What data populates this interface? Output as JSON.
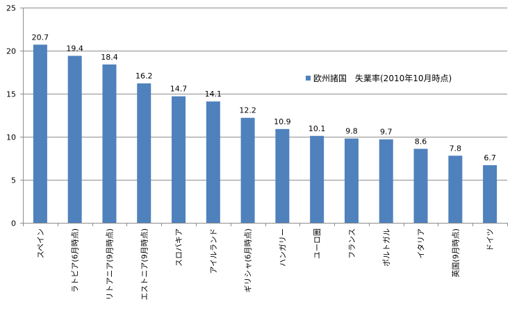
{
  "chart_data": {
    "type": "bar",
    "categories": [
      "スペイン",
      "ラトビア(6月時点)",
      "リトアニア(9月時点)",
      "エストニア(9月時点)",
      "スロバキア",
      "アイルランド",
      "ギリシャ(6月時点)",
      "ハンガリー",
      "ユーロ圏",
      "フランス",
      "ポルトガル",
      "イタリア",
      "英国(9月時点)",
      "ドイツ"
    ],
    "series": [
      {
        "name": "欧州諸国　失業率(2010年10月時点)",
        "values": [
          20.7,
          19.4,
          18.4,
          16.2,
          14.7,
          14.1,
          12.2,
          10.9,
          10.1,
          9.8,
          9.7,
          8.6,
          7.8,
          6.7
        ]
      }
    ],
    "y_ticks": [
      "0",
      "5",
      "10",
      "15",
      "20",
      "25"
    ],
    "ylim": [
      0,
      25
    ],
    "grid": true,
    "legend_position": "right",
    "colors": {
      "bar": "#4f81bd",
      "grid": "#8c8c8c",
      "axis": "#8c8c8c",
      "text": "#000000"
    }
  }
}
